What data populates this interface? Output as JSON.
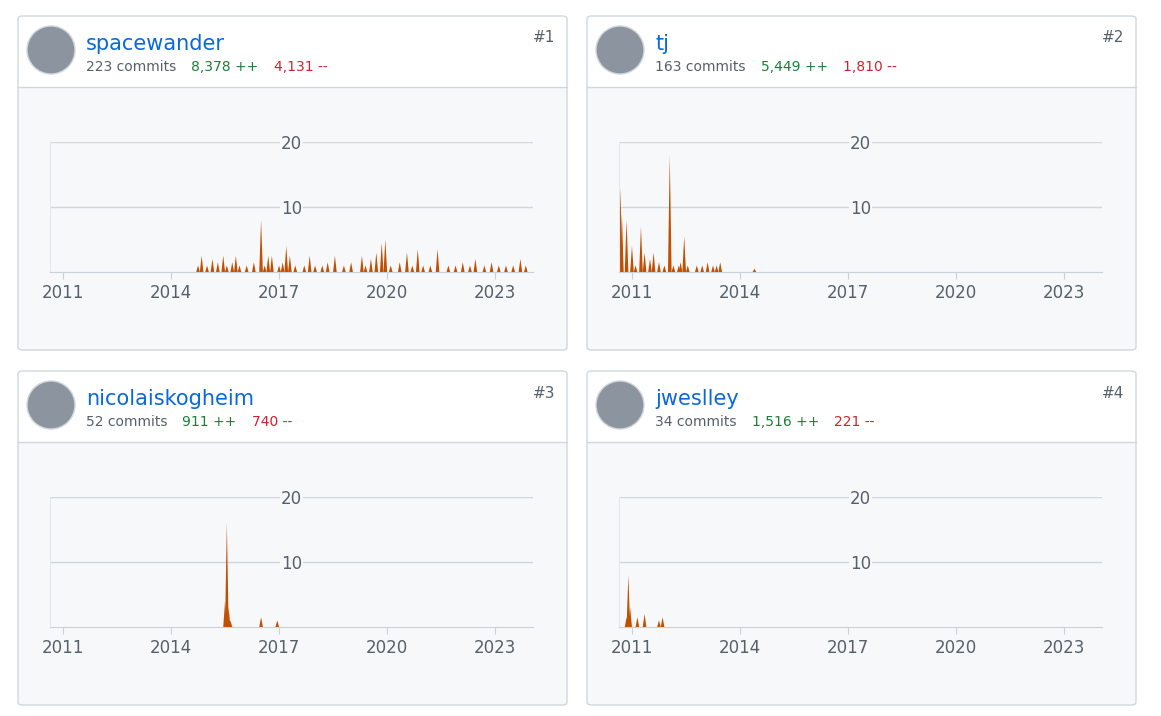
{
  "chart_data": [
    {
      "type": "area",
      "title": "spacewander",
      "subtitle": "223 commits",
      "annotations": [
        "8,378 ++",
        "4,131 --",
        "#1"
      ],
      "x": [
        2014.75,
        2014.85,
        2015.0,
        2015.15,
        2015.3,
        2015.45,
        2015.55,
        2015.7,
        2015.8,
        2015.9,
        2016.1,
        2016.3,
        2016.5,
        2016.6,
        2016.7,
        2016.8,
        2017.0,
        2017.1,
        2017.2,
        2017.3,
        2017.45,
        2017.7,
        2017.85,
        2018.0,
        2018.2,
        2018.35,
        2018.55,
        2018.8,
        2019.0,
        2019.3,
        2019.4,
        2019.55,
        2019.7,
        2019.85,
        2019.95,
        2020.1,
        2020.35,
        2020.55,
        2020.7,
        2020.85,
        2021.0,
        2021.2,
        2021.4,
        2021.7,
        2021.9,
        2022.1,
        2022.3,
        2022.45,
        2022.7,
        2022.9,
        2023.1,
        2023.3,
        2023.5,
        2023.7,
        2023.85
      ],
      "values": [
        1,
        2.5,
        1,
        2,
        1.5,
        2.5,
        1,
        1.5,
        2.5,
        1,
        1,
        1.5,
        8,
        1,
        2.5,
        2.5,
        1,
        1.5,
        4,
        2.5,
        1,
        1,
        2.5,
        1,
        1,
        1.5,
        2.5,
        1,
        1.5,
        2.5,
        1,
        2,
        3,
        4.5,
        5,
        1,
        1.5,
        3,
        1,
        3.5,
        1,
        1,
        3.5,
        1,
        1,
        1.5,
        1,
        2,
        1,
        1.5,
        1,
        1,
        1,
        2,
        1
      ],
      "color": "#c24e00",
      "xlim": [
        2010.64,
        2024.05
      ],
      "xticks": [
        2011,
        2014,
        2017,
        2020,
        2023
      ],
      "ylim": [
        0,
        20
      ],
      "yticks": [
        10,
        20
      ],
      "grid": true
    },
    {
      "type": "area",
      "title": "tj",
      "subtitle": "163 commits",
      "annotations": [
        "5,449 ++",
        "1,810 --",
        "#2"
      ],
      "x": [
        2010.68,
        2010.72,
        2010.85,
        2011.0,
        2011.1,
        2011.25,
        2011.35,
        2011.5,
        2011.6,
        2011.75,
        2011.9,
        2012.05,
        2012.15,
        2012.3,
        2012.35,
        2012.45,
        2012.55,
        2012.8,
        2012.95,
        2013.1,
        2013.25,
        2013.35,
        2013.45,
        2014.4
      ],
      "values": [
        13,
        9,
        8,
        4,
        1,
        7,
        3,
        2,
        3,
        1.5,
        1,
        18,
        1,
        1,
        1.5,
        5.5,
        1,
        1,
        1,
        1.5,
        1,
        1,
        1.5,
        0.5
      ],
      "color": "#c24e00",
      "xlim": [
        2010.64,
        2024.05
      ],
      "xticks": [
        2011,
        2014,
        2017,
        2020,
        2023
      ],
      "ylim": [
        0,
        20
      ],
      "yticks": [
        10,
        20
      ],
      "grid": true
    },
    {
      "type": "area",
      "title": "nicolaiskogheim",
      "subtitle": "52 commits",
      "annotations": [
        "911 ++",
        "740 --",
        "#3"
      ],
      "x": [
        2015.5,
        2015.55,
        2015.6,
        2015.65,
        2016.5,
        2016.95
      ],
      "values": [
        4,
        16,
        3,
        1,
        1.5,
        1
      ],
      "color": "#c24e00",
      "xlim": [
        2010.64,
        2024.05
      ],
      "xticks": [
        2011,
        2014,
        2017,
        2020,
        2023
      ],
      "ylim": [
        0,
        20
      ],
      "yticks": [
        10,
        20
      ],
      "grid": true
    },
    {
      "type": "area",
      "title": "jweslley",
      "subtitle": "34 commits",
      "annotations": [
        "1,516 ++",
        "221 --",
        "#4"
      ],
      "x": [
        2010.85,
        2010.9,
        2010.95,
        2011.15,
        2011.35,
        2011.75,
        2011.85
      ],
      "values": [
        1.5,
        8,
        3,
        1.5,
        2,
        1,
        1.5
      ],
      "color": "#c24e00",
      "xlim": [
        2010.64,
        2024.05
      ],
      "xticks": [
        2011,
        2014,
        2017,
        2020,
        2023
      ],
      "ylim": [
        0,
        20
      ],
      "yticks": [
        10,
        20
      ],
      "grid": true
    }
  ]
}
